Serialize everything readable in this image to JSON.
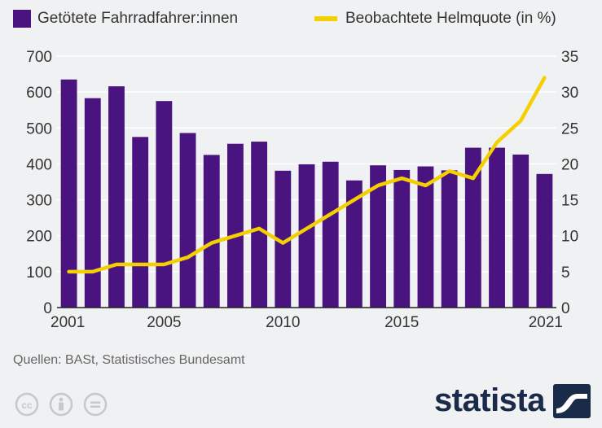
{
  "legend": {
    "bars_label": "Getötete Fahrradfahrer:innen",
    "line_label": "Beobachtete Helmquote (in %)"
  },
  "source": "Quellen: BASt, Statistisches Bundesamt",
  "brand": {
    "name": "statista"
  },
  "colors": {
    "bar": "#4a1480",
    "line": "#f5d000",
    "axis_text": "#333333",
    "grid": "#ffffff"
  },
  "chart_data": {
    "type": "bar",
    "title": "",
    "categories": [
      2001,
      2002,
      2003,
      2004,
      2005,
      2006,
      2007,
      2008,
      2009,
      2010,
      2011,
      2012,
      2013,
      2014,
      2015,
      2016,
      2017,
      2018,
      2019,
      2020,
      2021
    ],
    "x_tick_labels": [
      "2001",
      "2005",
      "2010",
      "2015",
      "2021"
    ],
    "series": [
      {
        "name": "Getötete Fahrradfahrer:innen",
        "type": "bar",
        "axis": "left",
        "values": [
          635,
          583,
          616,
          475,
          575,
          486,
          425,
          456,
          462,
          381,
          399,
          406,
          354,
          396,
          383,
          393,
          382,
          445,
          445,
          426,
          372
        ]
      },
      {
        "name": "Beobachtete Helmquote (in %)",
        "type": "line",
        "axis": "right",
        "values": [
          5,
          5,
          6,
          6,
          6,
          7,
          9,
          10,
          11,
          9,
          11,
          13,
          15,
          17,
          18,
          17,
          19,
          18,
          23,
          26,
          32
        ]
      }
    ],
    "y_left": {
      "lim": [
        0,
        700
      ],
      "ticks": [
        0,
        100,
        200,
        300,
        400,
        500,
        600,
        700
      ]
    },
    "y_right": {
      "lim": [
        0,
        35
      ],
      "ticks": [
        0,
        5,
        10,
        15,
        20,
        25,
        30,
        35
      ]
    }
  }
}
